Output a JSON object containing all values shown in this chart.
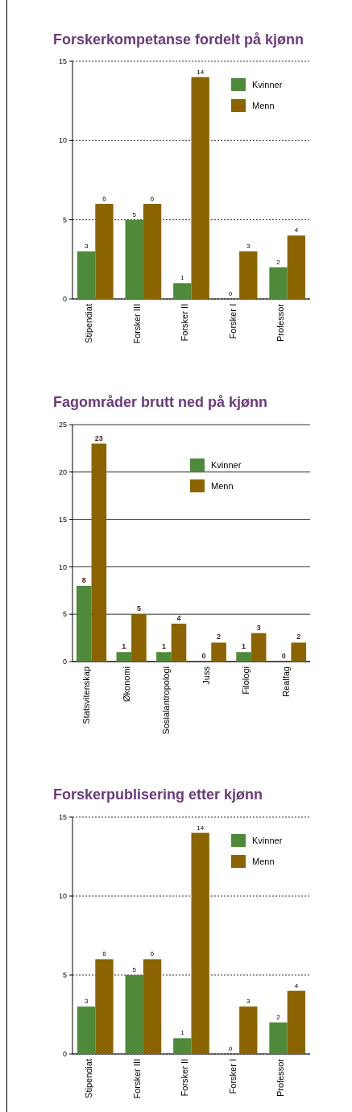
{
  "chart_data": [
    {
      "type": "bar",
      "title": "Forskerkompetanse fordelt på kjønn",
      "categories": [
        "Stipendiat",
        "Forsker III",
        "Forsker II",
        "Forsker I",
        "Professor"
      ],
      "series": [
        {
          "name": "Kvinner",
          "color": "#4e8a3a",
          "values": [
            3,
            5,
            1,
            0,
            2
          ]
        },
        {
          "name": "Menn",
          "color": "#8b6400",
          "values": [
            6,
            6,
            14,
            3,
            4
          ]
        }
      ],
      "ylim": [
        0,
        15
      ],
      "yticks": [
        0,
        5,
        10,
        15
      ],
      "grid": "y",
      "legend": "top right",
      "data_labels": true
    },
    {
      "type": "bar",
      "title": "Fagområder brutt ned på kjønn",
      "categories": [
        "Statsvitenskap",
        "Økonomi",
        "Sosialantropologi",
        "Juss",
        "Filologi",
        "Realfag"
      ],
      "series": [
        {
          "name": "Kvinner",
          "color": "#4e8a3a",
          "values": [
            8,
            1,
            1,
            0,
            1,
            0
          ]
        },
        {
          "name": "Menn",
          "color": "#8b6400",
          "values": [
            23,
            5,
            4,
            2,
            3,
            2
          ]
        }
      ],
      "ylim": [
        0,
        25
      ],
      "yticks": [
        0,
        5,
        10,
        15,
        20,
        25
      ],
      "grid": "y",
      "legend": "top right",
      "data_labels": true
    },
    {
      "type": "bar",
      "title": "Forskerpublisering etter kjønn",
      "categories": [
        "Stipendiat",
        "Forsker III",
        "Forsker II",
        "Forsker I",
        "Professor"
      ],
      "series": [
        {
          "name": "Kvinner",
          "color": "#4e8a3a",
          "values": [
            3,
            5,
            1,
            0,
            2
          ]
        },
        {
          "name": "Menn",
          "color": "#8b6400",
          "values": [
            6,
            6,
            14,
            3,
            4
          ]
        }
      ],
      "ylim": [
        0,
        15
      ],
      "yticks": [
        0,
        5,
        10,
        15
      ],
      "grid": "y",
      "legend": "top right",
      "data_labels": true
    }
  ]
}
